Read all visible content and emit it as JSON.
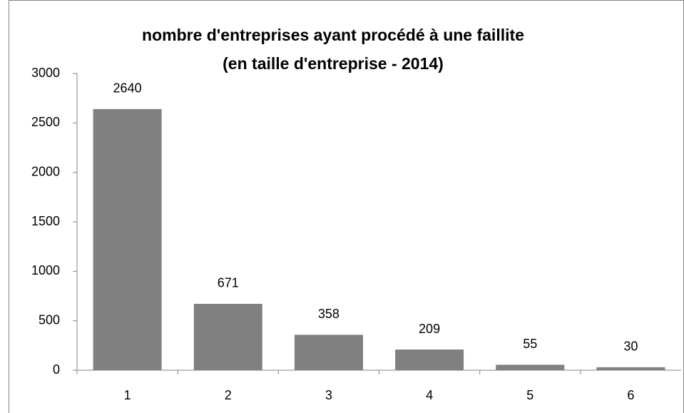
{
  "chart_data": {
    "type": "bar",
    "title": [
      "nombre d'entreprises ayant procédé à une faillite",
      "(en taille d'entreprise - 2014)"
    ],
    "categories": [
      "1",
      "2",
      "3",
      "4",
      "5",
      "6"
    ],
    "values": [
      2640,
      671,
      358,
      209,
      55,
      30
    ],
    "color": "#808080",
    "ylim": [
      0,
      3000
    ],
    "yticks": [
      0,
      500,
      1000,
      1500,
      2000,
      2500,
      3000
    ],
    "grid": false
  }
}
